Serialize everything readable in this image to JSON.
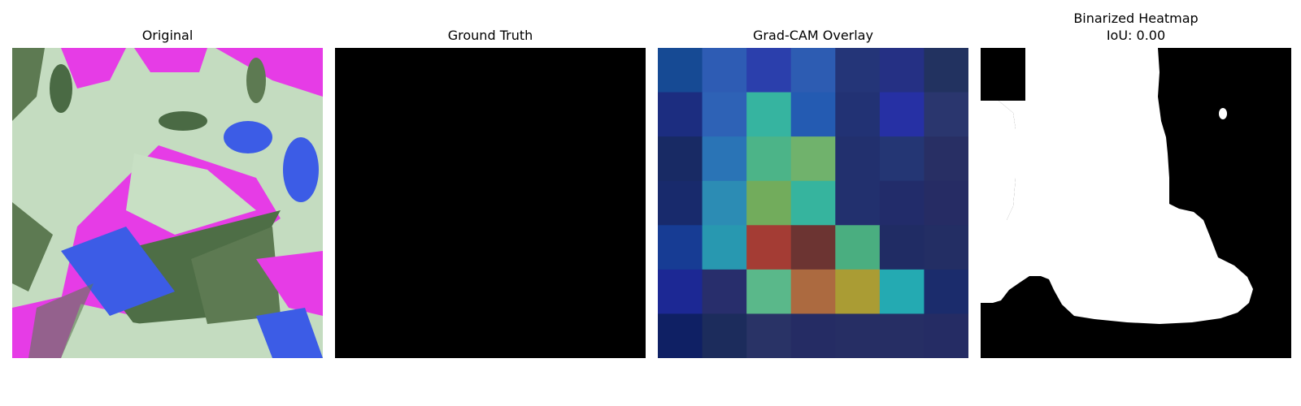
{
  "panels": [
    {
      "title": "Original",
      "subtitle": ""
    },
    {
      "title": "Ground Truth",
      "subtitle": ""
    },
    {
      "title": "Grad-CAM Overlay",
      "subtitle": ""
    },
    {
      "title": "Binarized Heatmap",
      "subtitle": "IoU: 0.00"
    }
  ],
  "gradcam_colors": [
    [
      "#164a94",
      "#2e5cb4",
      "#2b3fac",
      "#2d5cb2",
      "#243578",
      "#253084",
      "#223260"
    ],
    [
      "#1c2d80",
      "#2e62b6",
      "#36b4a0",
      "#245bb2",
      "#223274",
      "#2630a4",
      "#2a366e"
    ],
    [
      "#182a64",
      "#2a74b6",
      "#4cb488",
      "#70b26c",
      "#22306e",
      "#243674",
      "#282f64"
    ],
    [
      "#182a6c",
      "#2c8cb4",
      "#72ac5c",
      "#36b49e",
      "#22306e",
      "#222c6a",
      "#262c64"
    ],
    [
      "#173c94",
      "#2898b0",
      "#a43c34",
      "#6c3432",
      "#4aae80",
      "#202c64",
      "#232e64"
    ],
    [
      "#1c2894",
      "#282e6c",
      "#5ab88a",
      "#ac6a40",
      "#aa9c34",
      "#24aab2",
      "#1b2c6c"
    ],
    [
      "#0f2064",
      "#1c2c5c",
      "#293366",
      "#252c64",
      "#262e64",
      "#262e64",
      "#252c64"
    ]
  ]
}
